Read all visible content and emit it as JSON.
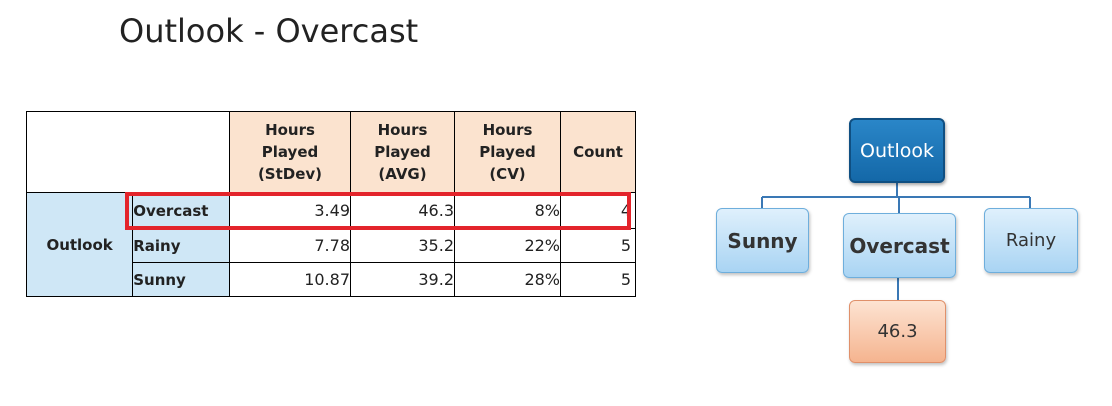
{
  "title": "Outlook - Overcast",
  "table": {
    "headers": [
      "Hours\nPlayed\n(StDev)",
      "Hours\nPlayed\n(AVG)",
      "Hours\nPlayed\n(CV)",
      "Count"
    ],
    "row_group": "Outlook",
    "rows": [
      {
        "label": "Overcast",
        "stdev": "3.49",
        "avg": "46.3",
        "cv": "8%",
        "count": "4"
      },
      {
        "label": "Rainy",
        "stdev": "7.78",
        "avg": "35.2",
        "cv": "22%",
        "count": "5"
      },
      {
        "label": "Sunny",
        "stdev": "10.87",
        "avg": "39.2",
        "cv": "28%",
        "count": "5"
      }
    ],
    "highlighted_row": "Overcast",
    "highlight_color": "#e3242b"
  },
  "tree": {
    "root": "Outlook",
    "children": [
      "Sunny",
      "Overcast",
      "Rainy"
    ],
    "leaf": "46.3",
    "colors": {
      "root": "#1e78bd",
      "child": "#bfe0f7",
      "leaf": "#f8c6a8"
    }
  }
}
